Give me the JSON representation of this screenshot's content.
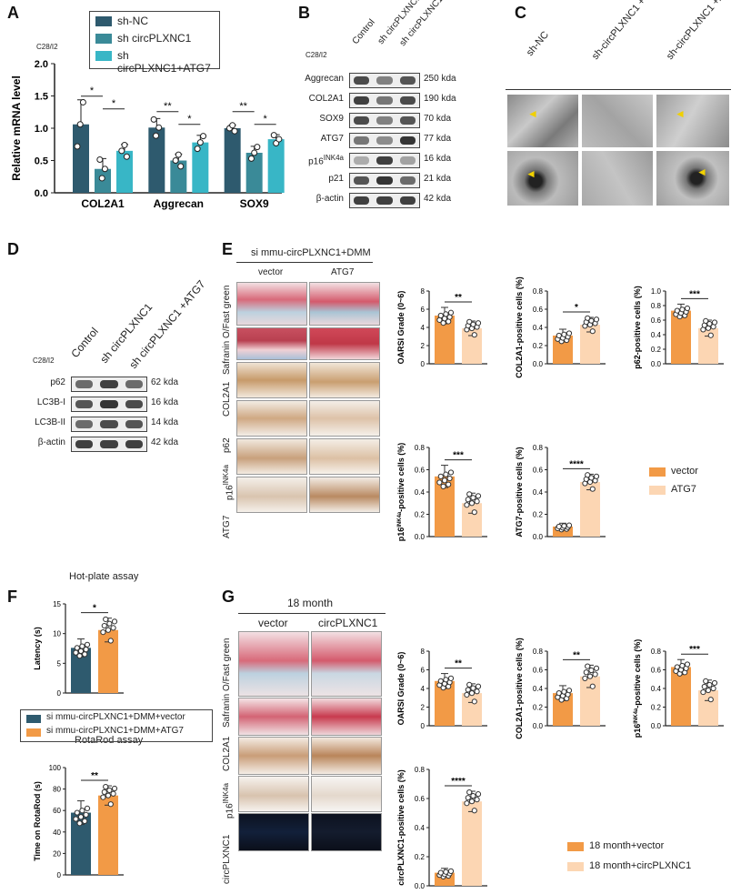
{
  "panels": {
    "A": "A",
    "B": "B",
    "C": "C",
    "D": "D",
    "E": "E",
    "F": "F",
    "G": "G"
  },
  "cellline": "C28/I2",
  "colors": {
    "dark": "#2e5a6e",
    "mid": "#3a8a98",
    "light": "#38b6c6",
    "orange": "#f29a46",
    "peach": "#fcd6b3"
  },
  "A": {
    "legend": [
      "sh-NC",
      "sh circPLXNC1",
      "sh circPLXNC1+ATG7"
    ],
    "ylabel": "Relative mRNA level",
    "yticks": [
      "0.0",
      "0.5",
      "1.0",
      "1.5",
      "2.0"
    ],
    "sig": [
      "*",
      "*",
      "**",
      "*",
      "**",
      "*"
    ]
  },
  "B": {
    "cols": [
      "Control",
      "sh circPLXNC1",
      "sh circPLXNC1 +ATG7"
    ],
    "rows": [
      "Aggrecan",
      "COL2A1",
      "SOX9",
      "ATG7",
      "p16",
      "p21",
      "β-actin"
    ],
    "p16_sup": "INK4a",
    "kda": [
      "250 kda",
      "190 kda",
      "70 kda",
      "77 kda",
      "16 kda",
      "21 kda",
      "42 kda"
    ]
  },
  "C": {
    "cols": [
      "sh-NC",
      "sh-circPLXNC1 +vector",
      "sh-circPLXNC1 +ATG7"
    ]
  },
  "D": {
    "cols": [
      "Control",
      "sh circPLXNC1",
      "sh circPLXNC1 +ATG7"
    ],
    "rows": [
      "p62",
      "LC3B-I",
      "LC3B-II",
      "β-actin"
    ],
    "kda": [
      "62 kda",
      "16 kda",
      "14 kda",
      "42 kda"
    ]
  },
  "E": {
    "header": "si mmu-circPLXNC1+DMM",
    "cols": [
      "vector",
      "ATG7"
    ],
    "rows": [
      "Safranin O/Fast green",
      "COL2A1",
      "p62",
      "p16",
      "ATG7"
    ],
    "sup": "INK4a",
    "legend": [
      "vector",
      "ATG7"
    ],
    "chart_titles": [
      "OARSI Grade (0~6)",
      "COL2A1-positive cells (%)",
      "p62-positive cells (%)",
      "-positive cells (%)",
      "ATG7-positive cells (%)"
    ],
    "sig": [
      "**",
      "*",
      "***",
      "***",
      "****"
    ]
  },
  "F": {
    "title1": "Hot-plate assay",
    "ylabel1": "Latency (s)",
    "title2": "RotaRod assay",
    "ylabel2": "Time on RotaRod (s)",
    "legend": [
      "si mmu-circPLXNC1+DMM+vector",
      "si mmu-circPLXNC1+DMM+ATG7"
    ],
    "sig": [
      "*",
      "**"
    ]
  },
  "G": {
    "header": "18 month",
    "cols": [
      "vector",
      "circPLXNC1"
    ],
    "rows": [
      "Safranin O/Fast green",
      "COL2A1",
      "p16",
      "circPLXNC1"
    ],
    "legend": [
      "18 month+vector",
      "18 month+circPLXNC1"
    ],
    "chart_titles": [
      "OARSI Grade (0~6)",
      "COL2A1-positive cells (%)",
      "-positive cells (%)",
      "circPLXNC1-positive cells (%)"
    ],
    "sig": [
      "**",
      "**",
      "***",
      "****"
    ]
  },
  "chart_data": [
    {
      "type": "bar",
      "panel": "A",
      "categories": [
        "COL2A1",
        "Aggrecan",
        "SOX9"
      ],
      "series": [
        {
          "name": "sh-NC",
          "values": [
            1.06,
            1.01,
            1.0
          ],
          "err": [
            0.38,
            0.14,
            0.05
          ]
        },
        {
          "name": "sh circPLXNC1",
          "values": [
            0.37,
            0.5,
            0.62
          ],
          "err": [
            0.16,
            0.1,
            0.1
          ]
        },
        {
          "name": "sh circPLXNC1+ATG7",
          "values": [
            0.65,
            0.78,
            0.83
          ],
          "err": [
            0.1,
            0.11,
            0.07
          ]
        }
      ],
      "ylabel": "Relative mRNA level",
      "ylim": [
        0,
        2
      ]
    },
    {
      "type": "bar",
      "panel": "E1",
      "categories": [
        "vector",
        "ATG7"
      ],
      "values": [
        5.3,
        3.9
      ],
      "err": [
        0.9,
        0.8
      ],
      "ylim": [
        0,
        8
      ],
      "yticks": [
        0,
        2,
        4,
        6,
        8
      ],
      "ylabel": "OARSI Grade (0~6)"
    },
    {
      "type": "bar",
      "panel": "E2",
      "categories": [
        "vector",
        "ATG7"
      ],
      "values": [
        0.31,
        0.43
      ],
      "err": [
        0.07,
        0.08
      ],
      "ylim": [
        0,
        0.8
      ],
      "yticks": [
        0,
        0.2,
        0.4,
        0.6,
        0.8
      ],
      "ylabel": "COL2A1-positive cells (%)"
    },
    {
      "type": "bar",
      "panel": "E3",
      "categories": [
        "vector",
        "ATG7"
      ],
      "values": [
        0.73,
        0.49
      ],
      "err": [
        0.09,
        0.11
      ],
      "ylim": [
        0,
        1.0
      ],
      "yticks": [
        0,
        0.2,
        0.4,
        0.6,
        0.8,
        1.0
      ],
      "ylabel": "p62-positive cells (%)"
    },
    {
      "type": "bar",
      "panel": "E4",
      "categories": [
        "vector",
        "ATG7"
      ],
      "values": [
        0.54,
        0.3
      ],
      "err": [
        0.1,
        0.09
      ],
      "ylim": [
        0,
        0.8
      ],
      "yticks": [
        0,
        0.2,
        0.4,
        0.6,
        0.8
      ],
      "ylabel": "p16INK4a-positive cells (%)"
    },
    {
      "type": "bar",
      "panel": "E5",
      "categories": [
        "vector",
        "ATG7"
      ],
      "values": [
        0.09,
        0.49
      ],
      "err": [
        0.03,
        0.07
      ],
      "ylim": [
        0,
        0.8
      ],
      "yticks": [
        0,
        0.2,
        0.4,
        0.6,
        0.8
      ],
      "ylabel": "ATG7-positive cells (%)"
    },
    {
      "type": "bar",
      "panel": "F1",
      "categories": [
        "vector",
        "ATG7"
      ],
      "values": [
        7.6,
        10.6
      ],
      "err": [
        1.5,
        2.0
      ],
      "ylim": [
        0,
        15
      ],
      "yticks": [
        0,
        5,
        10,
        15
      ],
      "ylabel": "Latency (s)"
    },
    {
      "type": "bar",
      "panel": "F2",
      "categories": [
        "vector",
        "ATG7"
      ],
      "values": [
        58,
        74
      ],
      "err": [
        11,
        9
      ],
      "ylim": [
        0,
        100
      ],
      "yticks": [
        0,
        20,
        40,
        60,
        80,
        100
      ],
      "ylabel": "Time on RotaRod (s)"
    },
    {
      "type": "bar",
      "panel": "G1",
      "categories": [
        "vector",
        "circPLXNC1"
      ],
      "values": [
        4.8,
        3.5
      ],
      "err": [
        0.8,
        1.0
      ],
      "ylim": [
        0,
        8
      ],
      "yticks": [
        0,
        2,
        4,
        6,
        8
      ],
      "ylabel": "OARSI Grade (0~6)"
    },
    {
      "type": "bar",
      "panel": "G2",
      "categories": [
        "vector",
        "circPLXNC1"
      ],
      "values": [
        0.35,
        0.53
      ],
      "err": [
        0.08,
        0.12
      ],
      "ylim": [
        0,
        0.8
      ],
      "yticks": [
        0,
        0.2,
        0.4,
        0.6,
        0.8
      ],
      "ylabel": "COL2A1-positive cells (%)"
    },
    {
      "type": "bar",
      "panel": "G3",
      "categories": [
        "vector",
        "circPLXNC1"
      ],
      "values": [
        0.63,
        0.38
      ],
      "err": [
        0.08,
        0.11
      ],
      "ylim": [
        0,
        0.8
      ],
      "yticks": [
        0,
        0.2,
        0.4,
        0.6,
        0.8
      ],
      "ylabel": "p16INK4a-positive cells (%)"
    },
    {
      "type": "bar",
      "panel": "G4",
      "categories": [
        "vector",
        "circPLXNC1"
      ],
      "values": [
        0.09,
        0.58
      ],
      "err": [
        0.03,
        0.07
      ],
      "ylim": [
        0,
        0.8
      ],
      "yticks": [
        0,
        0.2,
        0.4,
        0.6,
        0.8
      ],
      "ylabel": "circPLXNC1-positive cells (%)"
    }
  ]
}
